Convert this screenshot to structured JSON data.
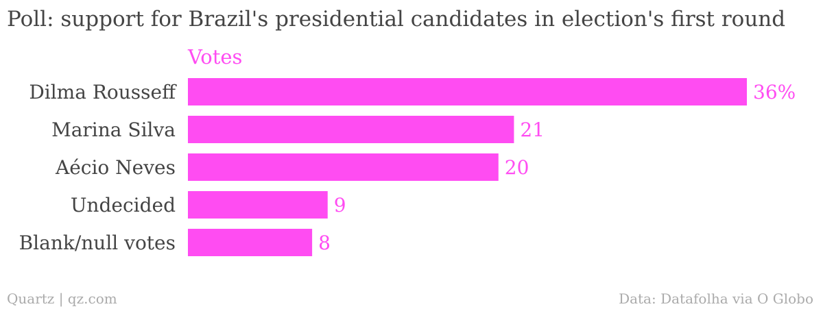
{
  "title": "Poll: support for Brazil's presidential candidates in election's first round",
  "footer": {
    "credit": "Quartz | qz.com",
    "source": "Data: Datafolha via O Globo"
  },
  "colors": {
    "bar": "#ff4cf2",
    "text": "#444444",
    "footer": "#aaaaaa"
  },
  "chart_data": {
    "type": "bar",
    "orientation": "horizontal",
    "title": "Poll: support for Brazil's presidential candidates in election's first round",
    "categories": [
      "Dilma Rousseff",
      "Marina Silva",
      "Aécio Neves",
      "Undecided",
      "Blank/null votes"
    ],
    "series": [
      {
        "name": "Votes",
        "values": [
          36,
          21,
          20,
          9,
          8
        ]
      }
    ],
    "value_labels": [
      "36%",
      "21",
      "20",
      "9",
      "8"
    ],
    "unit": "%",
    "xlim": [
      0,
      36
    ],
    "grid": false,
    "legend": "top-left"
  }
}
